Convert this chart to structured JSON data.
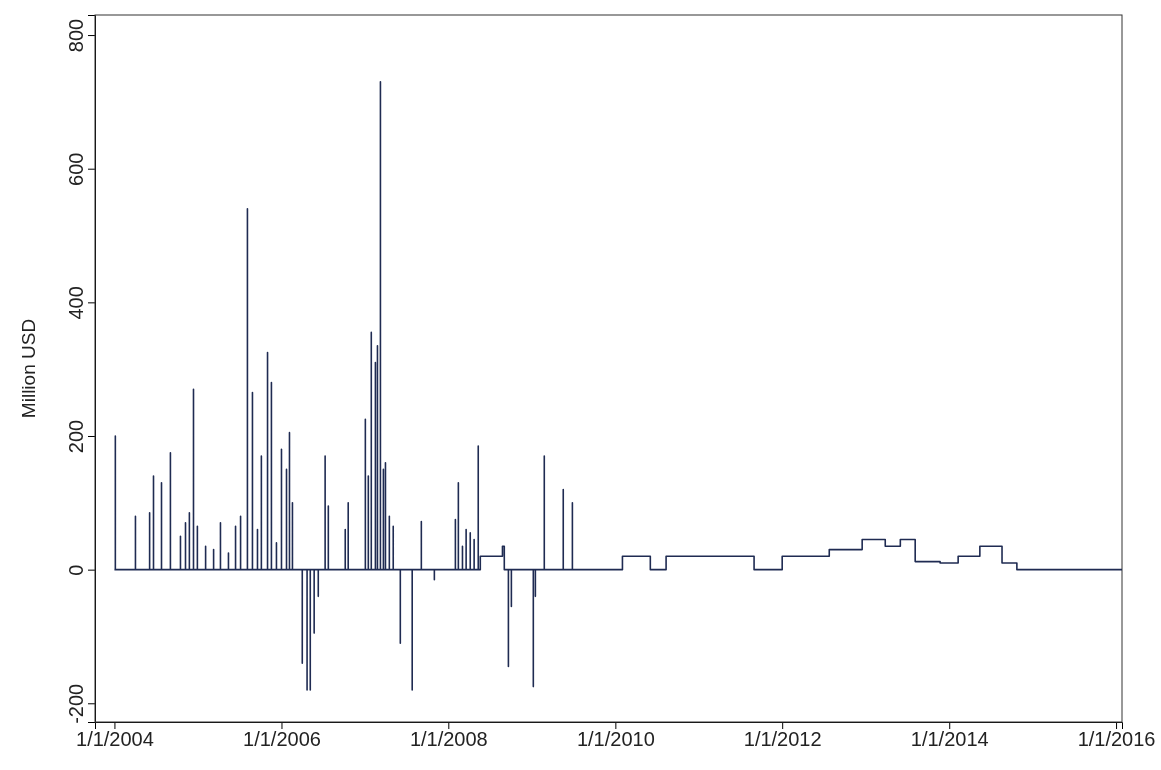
{
  "chart_data": {
    "type": "line",
    "ylabel": "Million USD",
    "xlim": [
      "2003-10-08",
      "2016-01-27"
    ],
    "xticks": [
      {
        "value": "2004-01-01",
        "label": "1/1/2004"
      },
      {
        "value": "2006-01-01",
        "label": "1/1/2006"
      },
      {
        "value": "2008-01-01",
        "label": "1/1/2008"
      },
      {
        "value": "2010-01-01",
        "label": "1/1/2010"
      },
      {
        "value": "2012-01-01",
        "label": "1/1/2012"
      },
      {
        "value": "2014-01-01",
        "label": "1/1/2014"
      },
      {
        "value": "2016-01-01",
        "label": "1/1/2016"
      }
    ],
    "ylim": [
      -228,
      830
    ],
    "yticks": [
      -200,
      0,
      200,
      400,
      600,
      800
    ],
    "grid": false,
    "line_style": "solid",
    "series": [
      {
        "color": "#1f2b52",
        "x": [
          "2004-01-01",
          "2004-01-05",
          "2004-01-05",
          "2004-01-05",
          "2004-04-02",
          "2004-04-02",
          "2004-04-02",
          "2004-06-03",
          "2004-06-03",
          "2004-06-03",
          "2004-06-20",
          "2004-06-20",
          "2004-06-20",
          "2004-07-25",
          "2004-07-25",
          "2004-07-25",
          "2004-09-02",
          "2004-09-02",
          "2004-09-02",
          "2004-10-16",
          "2004-10-16",
          "2004-10-16",
          "2004-11-07",
          "2004-11-07",
          "2004-11-07",
          "2004-11-24",
          "2004-11-24",
          "2004-11-24",
          "2004-12-12",
          "2004-12-12",
          "2004-12-12",
          "2004-12-29",
          "2004-12-29",
          "2004-12-29",
          "2005-02-03",
          "2005-02-03",
          "2005-02-03",
          "2005-03-10",
          "2005-03-10",
          "2005-03-10",
          "2005-04-09",
          "2005-04-09",
          "2005-04-09",
          "2005-05-14",
          "2005-05-14",
          "2005-05-14",
          "2005-06-14",
          "2005-06-14",
          "2005-06-14",
          "2005-07-06",
          "2005-07-06",
          "2005-07-06",
          "2005-08-05",
          "2005-08-05",
          "2005-08-05",
          "2005-08-27",
          "2005-08-27",
          "2005-08-27",
          "2005-09-18",
          "2005-09-18",
          "2005-09-18",
          "2005-10-05",
          "2005-10-05",
          "2005-10-05",
          "2005-11-01",
          "2005-11-01",
          "2005-11-01",
          "2005-11-18",
          "2005-11-18",
          "2005-11-18",
          "2005-12-10",
          "2005-12-10",
          "2005-12-10",
          "2006-01-01",
          "2006-01-01",
          "2006-01-01",
          "2006-01-23",
          "2006-01-23",
          "2006-01-23",
          "2006-02-05",
          "2006-02-05",
          "2006-02-05",
          "2006-02-18",
          "2006-02-18",
          "2006-02-18",
          "2006-04-02",
          "2006-04-02",
          "2006-04-02",
          "2006-04-23",
          "2006-04-23",
          "2006-04-23",
          "2006-05-07",
          "2006-05-07",
          "2006-05-07",
          "2006-05-24",
          "2006-05-24",
          "2006-05-24",
          "2006-06-11",
          "2006-06-11",
          "2006-06-11",
          "2006-07-11",
          "2006-07-11",
          "2006-07-11",
          "2006-07-25",
          "2006-07-25",
          "2006-07-25",
          "2006-10-07",
          "2006-10-07",
          "2006-10-07",
          "2006-10-20",
          "2006-10-20",
          "2006-10-20",
          "2007-01-03",
          "2007-01-03",
          "2007-01-03",
          "2007-01-16",
          "2007-01-16",
          "2007-01-16",
          "2007-01-29",
          "2007-01-29",
          "2007-01-29",
          "2007-02-16",
          "2007-02-16",
          "2007-02-16",
          "2007-02-25",
          "2007-02-25",
          "2007-02-25",
          "2007-03-10",
          "2007-03-10",
          "2007-03-10",
          "2007-03-23",
          "2007-03-23",
          "2007-03-23",
          "2007-04-01",
          "2007-04-01",
          "2007-04-01",
          "2007-04-18",
          "2007-04-18",
          "2007-04-18",
          "2007-05-05",
          "2007-05-05",
          "2007-05-05",
          "2007-06-05",
          "2007-06-05",
          "2007-06-05",
          "2007-07-27",
          "2007-07-27",
          "2007-07-27",
          "2007-09-05",
          "2007-09-05",
          "2007-09-05",
          "2007-11-01",
          "2007-11-01",
          "2007-11-01",
          "2008-02-01",
          "2008-02-01",
          "2008-02-01",
          "2008-02-14",
          "2008-02-14",
          "2008-02-14",
          "2008-03-03",
          "2008-03-03",
          "2008-03-03",
          "2008-03-19",
          "2008-03-19",
          "2008-03-19",
          "2008-04-06",
          "2008-04-06",
          "2008-04-06",
          "2008-04-23",
          "2008-04-23",
          "2008-04-23",
          "2008-05-11",
          "2008-05-11",
          "2008-05-11",
          "2008-05-20",
          "2008-05-20",
          "2008-08-25",
          "2008-08-25",
          "2008-09-02",
          "2008-09-02",
          "2008-09-20",
          "2008-09-20",
          "2008-09-20",
          "2008-10-03",
          "2008-10-03",
          "2008-10-03",
          "2009-01-07",
          "2009-01-07",
          "2009-01-07",
          "2009-01-16",
          "2009-01-16",
          "2009-01-16",
          "2009-02-24",
          "2009-02-24",
          "2009-02-24",
          "2009-05-18",
          "2009-05-18",
          "2009-05-18",
          "2009-06-27",
          "2009-06-27",
          "2009-06-27",
          "2010-02-01",
          "2010-02-01",
          "2010-06-03",
          "2010-06-03",
          "2010-08-11",
          "2010-08-11",
          "2011-08-31",
          "2011-08-31",
          "2012-01-01",
          "2012-01-01",
          "2012-07-25",
          "2012-07-25",
          "2012-12-16",
          "2012-12-16",
          "2013-03-27",
          "2013-03-27",
          "2013-06-01",
          "2013-06-01",
          "2013-08-05",
          "2013-08-05",
          "2013-11-22",
          "2013-11-22",
          "2014-02-09",
          "2014-02-09",
          "2014-05-15",
          "2014-05-15",
          "2014-08-20",
          "2014-08-20",
          "2014-10-24",
          "2014-10-24",
          "2016-01-27"
        ],
        "values": [
          0,
          0,
          200,
          0,
          0,
          80,
          0,
          0,
          85,
          0,
          0,
          140,
          0,
          0,
          130,
          0,
          0,
          175,
          0,
          0,
          50,
          0,
          0,
          70,
          0,
          0,
          85,
          0,
          0,
          270,
          0,
          0,
          65,
          0,
          0,
          35,
          0,
          0,
          30,
          0,
          0,
          70,
          0,
          0,
          25,
          0,
          0,
          65,
          0,
          0,
          80,
          0,
          0,
          540,
          0,
          0,
          265,
          0,
          0,
          60,
          0,
          0,
          170,
          0,
          0,
          325,
          0,
          0,
          280,
          0,
          0,
          40,
          0,
          0,
          180,
          0,
          0,
          150,
          0,
          0,
          205,
          0,
          0,
          100,
          0,
          0,
          -140,
          0,
          0,
          -180,
          0,
          0,
          -180,
          0,
          0,
          -95,
          0,
          0,
          -40,
          0,
          0,
          170,
          0,
          0,
          95,
          0,
          0,
          60,
          0,
          0,
          100,
          0,
          0,
          225,
          0,
          0,
          140,
          0,
          0,
          355,
          0,
          0,
          310,
          0,
          0,
          335,
          0,
          0,
          730,
          0,
          0,
          150,
          0,
          0,
          160,
          0,
          0,
          80,
          0,
          0,
          65,
          0,
          0,
          -110,
          0,
          0,
          -180,
          0,
          0,
          72,
          0,
          0,
          -15,
          0,
          0,
          75,
          0,
          0,
          130,
          0,
          0,
          35,
          0,
          0,
          60,
          0,
          0,
          55,
          0,
          0,
          45,
          0,
          0,
          185,
          0,
          0,
          20,
          20,
          35,
          35,
          0,
          0,
          -145,
          0,
          0,
          -55,
          0,
          0,
          -175,
          0,
          0,
          -40,
          0,
          0,
          170,
          0,
          0,
          120,
          0,
          0,
          100,
          0,
          0,
          20,
          20,
          0,
          0,
          20,
          20,
          0,
          0,
          20,
          20,
          30,
          30,
          45,
          45,
          35,
          35,
          45,
          45,
          12,
          12,
          10,
          10,
          20,
          20,
          35,
          35,
          10,
          10,
          0,
          0
        ]
      }
    ]
  }
}
